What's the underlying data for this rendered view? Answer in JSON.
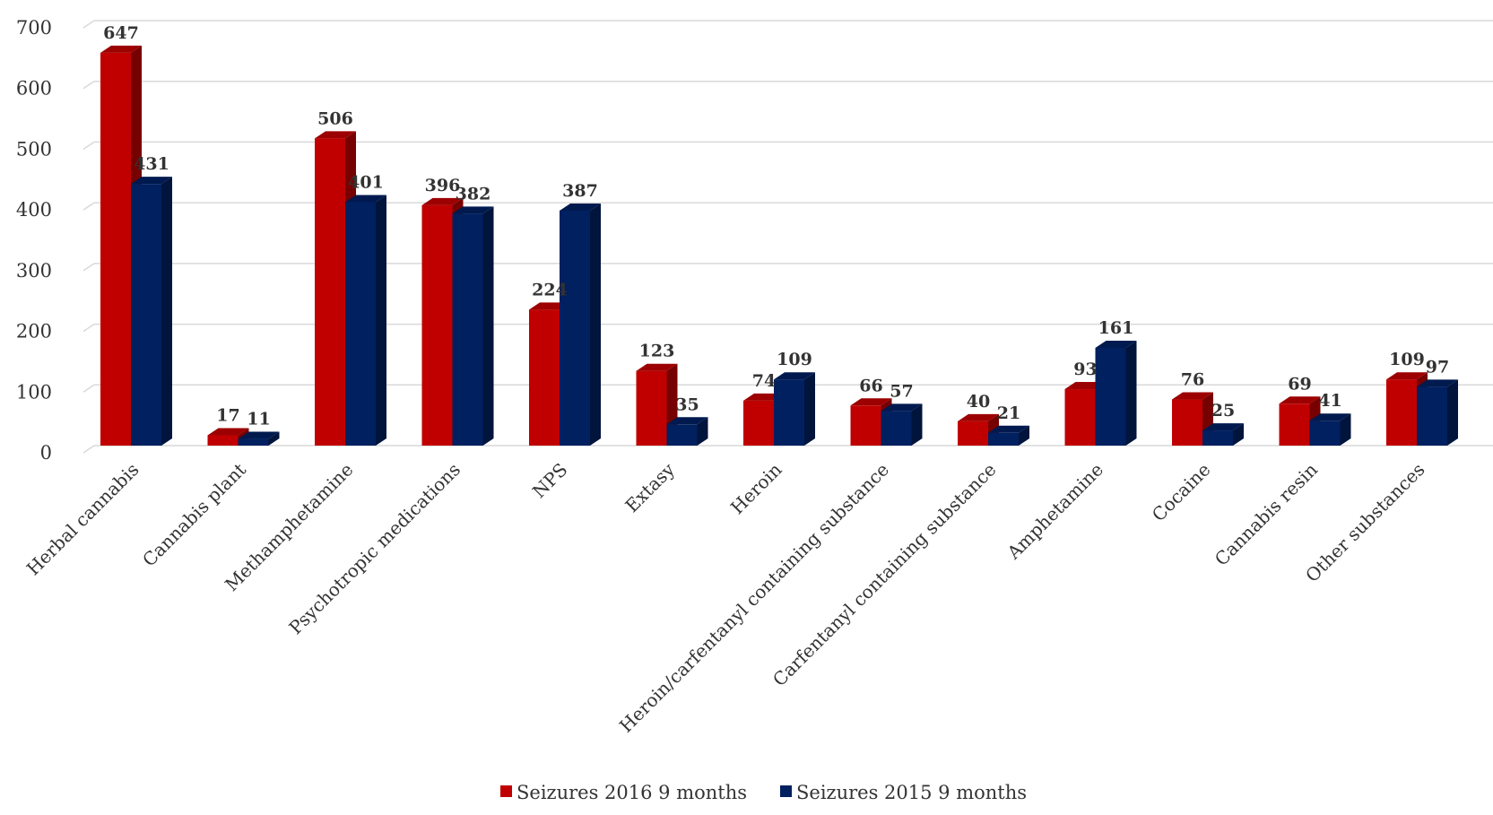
{
  "chart_data": {
    "type": "bar",
    "title": "",
    "xlabel": "",
    "ylabel": "",
    "ylim": [
      0,
      700
    ],
    "yticks": [
      0,
      100,
      200,
      300,
      400,
      500,
      600,
      700
    ],
    "grid": true,
    "legend_position": "bottom",
    "categories": [
      "Herbal cannabis",
      "Cannabis plant",
      "Methamphetamine",
      "Psychotropic medications",
      "NPS",
      "Extasy",
      "Heroin",
      "Heroin/carfentanyl containing substance",
      "Carfentanyl containing substance",
      "Amphetamine",
      "Cocaine",
      "Cannabis resin",
      "Other substances"
    ],
    "series": [
      {
        "name": "Seizures 2016 9 months",
        "color": "#c00000",
        "values": [
          647,
          17,
          506,
          396,
          224,
          123,
          74,
          66,
          40,
          93,
          76,
          69,
          109
        ]
      },
      {
        "name": "Seizures 2015 9 months",
        "color": "#002060",
        "values": [
          431,
          11,
          401,
          382,
          387,
          35,
          109,
          57,
          21,
          161,
          25,
          41,
          97
        ]
      }
    ]
  }
}
